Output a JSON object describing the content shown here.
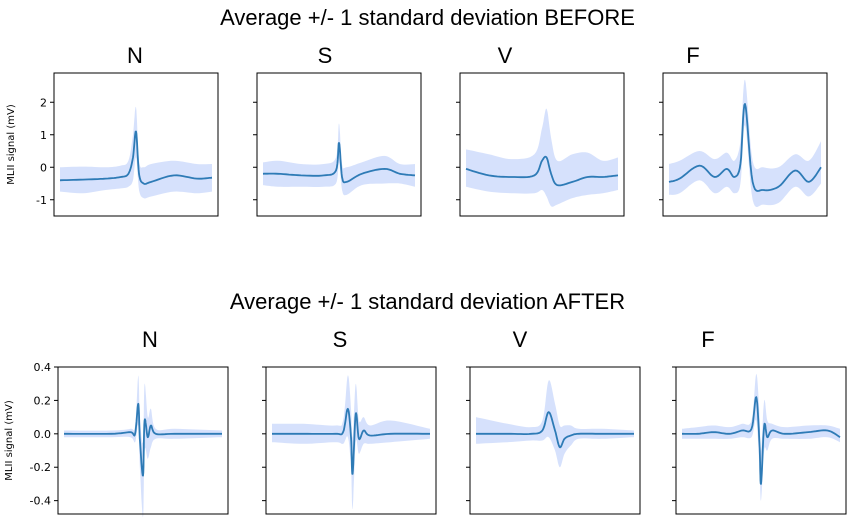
{
  "titles": {
    "before": "Average +/- 1 standard deviation BEFORE",
    "after": "Average +/- 1 standard deviation AFTER"
  },
  "colors": {
    "line": "#2e7bb6",
    "band": "#cfdcfb",
    "axis": "#000000"
  },
  "chart_data": [
    {
      "type": "line",
      "group": "BEFORE",
      "title": "N",
      "ylabel": "MLII signal (mV)",
      "ylim": [
        -1.5,
        2.9
      ],
      "yticks": [
        -1,
        0,
        1,
        2
      ],
      "series": [
        {
          "x": [
            0,
            0.15,
            0.3,
            0.4,
            0.45,
            0.48,
            0.5,
            0.52,
            0.55,
            0.6,
            0.75,
            0.9,
            1.0
          ],
          "mean": [
            -0.4,
            -0.38,
            -0.35,
            -0.3,
            -0.2,
            0.3,
            1.1,
            -0.2,
            -0.5,
            -0.45,
            -0.25,
            -0.35,
            -0.32
          ],
          "upper": [
            -0.0,
            0.02,
            0.0,
            0.05,
            0.2,
            1.0,
            1.85,
            0.2,
            0.0,
            0.1,
            0.2,
            0.1,
            0.1
          ],
          "lower": [
            -0.75,
            -0.8,
            -0.7,
            -0.65,
            -0.6,
            -0.4,
            0.3,
            -0.7,
            -0.95,
            -0.9,
            -0.75,
            -0.8,
            -0.75
          ]
        }
      ]
    },
    {
      "type": "line",
      "group": "BEFORE",
      "title": "S",
      "ylim": [
        -1.5,
        2.9
      ],
      "yticks": [
        -1,
        0,
        1,
        2
      ],
      "series": [
        {
          "x": [
            0,
            0.1,
            0.25,
            0.4,
            0.48,
            0.5,
            0.52,
            0.55,
            0.65,
            0.8,
            0.9,
            1.0
          ],
          "mean": [
            -0.2,
            -0.2,
            -0.25,
            -0.25,
            -0.1,
            0.75,
            -0.3,
            -0.45,
            -0.2,
            -0.05,
            -0.2,
            -0.25
          ],
          "upper": [
            0.15,
            0.2,
            0.1,
            0.1,
            0.3,
            1.35,
            0.1,
            0.0,
            0.15,
            0.35,
            0.1,
            0.1
          ],
          "lower": [
            -0.55,
            -0.6,
            -0.6,
            -0.6,
            -0.5,
            0.15,
            -0.7,
            -0.85,
            -0.55,
            -0.5,
            -0.5,
            -0.6
          ]
        }
      ]
    },
    {
      "type": "line",
      "group": "BEFORE",
      "title": "V",
      "ylim": [
        -1.5,
        2.9
      ],
      "yticks": [
        -1,
        0,
        1,
        2
      ],
      "series": [
        {
          "x": [
            0,
            0.15,
            0.3,
            0.45,
            0.5,
            0.53,
            0.56,
            0.6,
            0.7,
            0.8,
            0.9,
            1.0
          ],
          "mean": [
            -0.05,
            -0.25,
            -0.3,
            -0.25,
            0.2,
            0.3,
            -0.2,
            -0.55,
            -0.45,
            -0.3,
            -0.3,
            -0.25
          ],
          "upper": [
            0.55,
            0.4,
            0.25,
            0.4,
            1.2,
            1.8,
            0.9,
            0.2,
            0.4,
            0.45,
            0.2,
            0.3
          ],
          "lower": [
            -0.6,
            -0.75,
            -0.8,
            -0.8,
            -0.7,
            -0.9,
            -1.2,
            -1.15,
            -0.95,
            -0.85,
            -0.8,
            -0.7
          ]
        }
      ]
    },
    {
      "type": "line",
      "group": "BEFORE",
      "title": "F",
      "ylim": [
        -1.5,
        2.9
      ],
      "yticks": [
        -1,
        0,
        1,
        2
      ],
      "series": [
        {
          "x": [
            0,
            0.07,
            0.2,
            0.3,
            0.38,
            0.43,
            0.47,
            0.5,
            0.55,
            0.62,
            0.72,
            0.83,
            0.92,
            1.0
          ],
          "mean": [
            -0.45,
            -0.35,
            0.05,
            -0.3,
            -0.05,
            -0.3,
            0.1,
            1.95,
            -0.45,
            -0.7,
            -0.6,
            -0.1,
            -0.45,
            0.0
          ],
          "upper": [
            0.1,
            0.2,
            0.5,
            0.25,
            0.45,
            0.2,
            0.8,
            2.7,
            0.2,
            0.0,
            0.0,
            0.4,
            0.2,
            0.8
          ],
          "lower": [
            -0.85,
            -0.8,
            -0.4,
            -0.8,
            -0.6,
            -0.8,
            -0.5,
            1.3,
            -1.0,
            -1.15,
            -1.1,
            -0.6,
            -0.9,
            -0.5
          ]
        }
      ]
    },
    {
      "type": "line",
      "group": "AFTER",
      "title": "N",
      "ylabel": "MLII signal (mV)",
      "ylim": [
        -0.48,
        0.4
      ],
      "yticks": [
        -0.4,
        -0.2,
        0.0,
        0.2,
        0.4
      ],
      "series": [
        {
          "x": [
            0,
            0.3,
            0.42,
            0.45,
            0.47,
            0.48,
            0.5,
            0.51,
            0.53,
            0.55,
            0.58,
            0.7,
            1.0
          ],
          "mean": [
            0.0,
            0.0,
            0.01,
            0.0,
            0.18,
            -0.03,
            -0.25,
            0.08,
            -0.02,
            0.05,
            0.0,
            0.0,
            0.0
          ],
          "upper": [
            0.02,
            0.02,
            0.03,
            0.05,
            0.35,
            0.1,
            -0.05,
            0.3,
            0.1,
            0.15,
            0.03,
            0.03,
            0.02
          ],
          "lower": [
            -0.02,
            -0.02,
            -0.02,
            -0.05,
            0.05,
            -0.2,
            -0.5,
            -0.1,
            -0.15,
            -0.08,
            -0.03,
            -0.03,
            -0.02
          ]
        }
      ]
    },
    {
      "type": "line",
      "group": "AFTER",
      "title": "S",
      "ylim": [
        -0.48,
        0.4
      ],
      "yticks": [
        -0.4,
        -0.2,
        0.0,
        0.2,
        0.4
      ],
      "series": [
        {
          "x": [
            0,
            0.2,
            0.4,
            0.45,
            0.48,
            0.5,
            0.51,
            0.53,
            0.55,
            0.58,
            0.62,
            0.75,
            1.0
          ],
          "mean": [
            0.0,
            0.0,
            0.0,
            0.01,
            0.15,
            -0.02,
            -0.24,
            0.12,
            -0.03,
            0.02,
            -0.01,
            0.0,
            0.0
          ],
          "upper": [
            0.06,
            0.06,
            0.05,
            0.08,
            0.35,
            0.15,
            -0.02,
            0.3,
            0.08,
            0.1,
            0.05,
            0.08,
            0.03
          ],
          "lower": [
            -0.05,
            -0.06,
            -0.05,
            -0.06,
            -0.02,
            -0.2,
            -0.45,
            -0.05,
            -0.12,
            -0.06,
            -0.06,
            -0.05,
            -0.03
          ]
        }
      ]
    },
    {
      "type": "line",
      "group": "AFTER",
      "title": "V",
      "ylim": [
        -0.48,
        0.4
      ],
      "yticks": [
        -0.4,
        -0.2,
        0.0,
        0.2,
        0.4
      ],
      "series": [
        {
          "x": [
            0,
            0.2,
            0.35,
            0.42,
            0.46,
            0.5,
            0.53,
            0.56,
            0.6,
            0.65,
            0.8,
            1.0
          ],
          "mean": [
            0.0,
            0.0,
            0.0,
            0.02,
            0.13,
            0.02,
            -0.08,
            -0.03,
            -0.01,
            0.0,
            0.0,
            0.0
          ],
          "upper": [
            0.1,
            0.06,
            0.04,
            0.08,
            0.32,
            0.18,
            0.05,
            0.05,
            0.05,
            0.03,
            0.03,
            0.02
          ],
          "lower": [
            -0.06,
            -0.05,
            -0.04,
            -0.04,
            -0.02,
            -0.1,
            -0.2,
            -0.12,
            -0.07,
            -0.03,
            -0.03,
            -0.02
          ]
        }
      ]
    },
    {
      "type": "line",
      "group": "AFTER",
      "title": "F",
      "ylim": [
        -0.48,
        0.4
      ],
      "yticks": [
        -0.4,
        -0.2,
        0.0,
        0.2,
        0.4
      ],
      "series": [
        {
          "x": [
            0,
            0.1,
            0.2,
            0.3,
            0.38,
            0.44,
            0.47,
            0.49,
            0.5,
            0.52,
            0.54,
            0.57,
            0.65,
            0.8,
            0.92,
            1.0
          ],
          "mean": [
            0.0,
            0.0,
            0.01,
            0.0,
            0.02,
            0.03,
            0.22,
            -0.05,
            -0.3,
            0.05,
            -0.02,
            0.02,
            0.0,
            0.01,
            0.02,
            -0.02
          ],
          "upper": [
            0.03,
            0.04,
            0.05,
            0.04,
            0.06,
            0.08,
            0.36,
            0.12,
            -0.1,
            0.2,
            0.08,
            0.06,
            0.04,
            0.05,
            0.05,
            0.03
          ],
          "lower": [
            -0.03,
            -0.03,
            -0.03,
            -0.03,
            -0.02,
            -0.02,
            0.08,
            -0.2,
            -0.4,
            -0.1,
            -0.1,
            -0.03,
            -0.03,
            -0.03,
            -0.02,
            -0.05
          ]
        }
      ]
    }
  ]
}
